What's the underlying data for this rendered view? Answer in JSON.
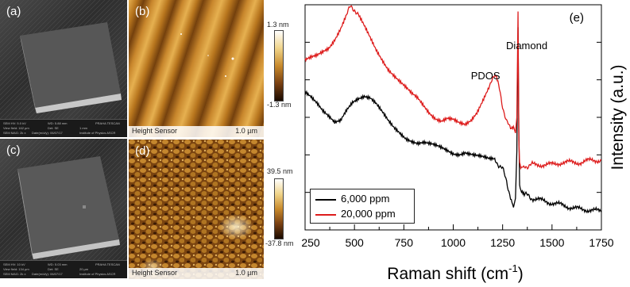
{
  "panels": {
    "a": {
      "label": "(a)",
      "type": "SEM"
    },
    "b": {
      "label": "(b)",
      "type": "AFM",
      "footer_left": "Height Sensor",
      "scale": "1.0 µm",
      "colorbar_max": "1.3 nm",
      "colorbar_min": "-1.3 nm"
    },
    "c": {
      "label": "(c)",
      "type": "SEM"
    },
    "d": {
      "label": "(d)",
      "type": "AFM",
      "footer_left": "Height Sensor",
      "scale": "1.0 µm",
      "colorbar_max": "39.5 nm",
      "colorbar_min": "-37.8 nm"
    }
  },
  "sem_footer": {
    "a": [
      "SEM HV: 5.0 kV",
      "WD: 5.88 mm",
      "View field: 162 µm",
      "Det: SE",
      "SEM MAG: 2k x",
      "Date(m/d/y): 06/07/17",
      "1 mm",
      "Institute of Physics ASCR",
      "PRAHA TESCAN"
    ],
    "c": [
      "SEM HV: 10 kV",
      "WD: 5.03 mm",
      "View field: 134 µm",
      "Det: SE",
      "SEM MAG: 2k x",
      "Date(m/d/y): 06/07/17",
      "20 µm",
      "Institute of Physics ASCR",
      "PRAHA TESCAN"
    ]
  },
  "chart_data": {
    "type": "line",
    "panel_label": "(e)",
    "xlabel": "Raman shift (cm",
    "xlabel_sup": "-1",
    "xlabel_tail": ")",
    "ylabel": "Intensity (a.u.)",
    "xlim": [
      250,
      1750
    ],
    "xticks": [
      250,
      500,
      750,
      1000,
      1250,
      1500,
      1750
    ],
    "annotations": [
      {
        "text": "PDOS",
        "x": 1210
      },
      {
        "text": "Diamond",
        "x": 1332
      }
    ],
    "series": [
      {
        "name": "6,000 ppm",
        "color": "#000000",
        "x": [
          250,
          280,
          310,
          340,
          370,
          400,
          430,
          460,
          490,
          520,
          550,
          580,
          610,
          640,
          670,
          700,
          730,
          760,
          790,
          820,
          850,
          880,
          910,
          940,
          970,
          1000,
          1030,
          1060,
          1090,
          1120,
          1150,
          1180,
          1210,
          1230,
          1250,
          1270,
          1290,
          1305,
          1315,
          1322,
          1328,
          1332,
          1336,
          1342,
          1360,
          1400,
          1450,
          1500,
          1550,
          1600,
          1650,
          1700,
          1750
        ],
        "y": [
          0.62,
          0.6,
          0.57,
          0.53,
          0.5,
          0.47,
          0.48,
          0.53,
          0.57,
          0.59,
          0.6,
          0.59,
          0.56,
          0.52,
          0.48,
          0.45,
          0.43,
          0.41,
          0.4,
          0.39,
          0.39,
          0.38,
          0.37,
          0.36,
          0.35,
          0.34,
          0.34,
          0.35,
          0.34,
          0.33,
          0.32,
          0.31,
          0.31,
          0.29,
          0.27,
          0.22,
          0.14,
          0.1,
          0.14,
          0.35,
          0.9,
          0.45,
          0.2,
          0.17,
          0.16,
          0.14,
          0.13,
          0.12,
          0.11,
          0.1,
          0.09,
          0.09,
          0.08
        ]
      },
      {
        "name": "20,000 ppm",
        "color": "#dd1c1c",
        "x": [
          250,
          280,
          310,
          340,
          370,
          400,
          430,
          460,
          480,
          500,
          520,
          550,
          580,
          610,
          640,
          670,
          700,
          730,
          760,
          790,
          820,
          850,
          880,
          910,
          940,
          970,
          1000,
          1030,
          1060,
          1090,
          1120,
          1150,
          1180,
          1200,
          1215,
          1230,
          1250,
          1270,
          1290,
          1305,
          1315,
          1322,
          1328,
          1332,
          1336,
          1342,
          1360,
          1400,
          1450,
          1500,
          1550,
          1600,
          1650,
          1700,
          1750
        ],
        "y": [
          0.75,
          0.76,
          0.77,
          0.79,
          0.81,
          0.85,
          0.9,
          0.96,
          0.99,
          0.98,
          0.95,
          0.9,
          0.85,
          0.8,
          0.76,
          0.72,
          0.69,
          0.66,
          0.63,
          0.6,
          0.58,
          0.55,
          0.52,
          0.5,
          0.49,
          0.5,
          0.49,
          0.47,
          0.46,
          0.48,
          0.52,
          0.58,
          0.64,
          0.67,
          0.68,
          0.64,
          0.55,
          0.48,
          0.45,
          0.46,
          0.43,
          0.5,
          0.97,
          0.4,
          0.3,
          0.28,
          0.28,
          0.29,
          0.29,
          0.29,
          0.3,
          0.3,
          0.3,
          0.31,
          0.31
        ]
      }
    ]
  }
}
